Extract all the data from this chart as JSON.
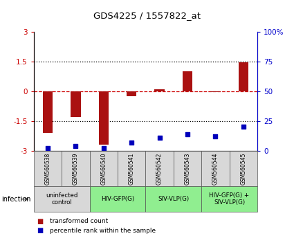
{
  "title": "GDS4225 / 1557822_at",
  "samples": [
    "GSM560538",
    "GSM560539",
    "GSM560540",
    "GSM560541",
    "GSM560542",
    "GSM560543",
    "GSM560544",
    "GSM560545"
  ],
  "transformed_count": [
    -2.1,
    -1.3,
    -2.7,
    -0.25,
    0.1,
    1.0,
    -0.05,
    1.45
  ],
  "percentile_rank": [
    2,
    4,
    2,
    7,
    11,
    14,
    12,
    20
  ],
  "ylim_left": [
    -3,
    3
  ],
  "ylim_right": [
    0,
    100
  ],
  "yticks_left": [
    -3,
    -1.5,
    0,
    1.5,
    3
  ],
  "yticks_right": [
    0,
    25,
    50,
    75,
    100
  ],
  "ytick_labels_left": [
    "-3",
    "-1.5",
    "0",
    "1.5",
    "3"
  ],
  "ytick_labels_right": [
    "0",
    "25",
    "50",
    "75",
    "100%"
  ],
  "hlines_dotted": [
    -1.5,
    1.5
  ],
  "hline_dashed": 0,
  "bar_color": "#aa1111",
  "dot_color": "#0000bb",
  "bar_width": 0.35,
  "dot_size": 25,
  "groups": [
    {
      "label": "uninfected\ncontrol",
      "start": 0,
      "end": 2,
      "color": "#d8d8d8"
    },
    {
      "label": "HIV-GFP(G)",
      "start": 2,
      "end": 4,
      "color": "#90ee90"
    },
    {
      "label": "SIV-VLP(G)",
      "start": 4,
      "end": 6,
      "color": "#90ee90"
    },
    {
      "label": "HIV-GFP(G) +\nSIV-VLP(G)",
      "start": 6,
      "end": 8,
      "color": "#90ee90"
    }
  ],
  "sample_box_color": "#d8d8d8",
  "infection_label": "infection",
  "legend_items": [
    {
      "label": "transformed count",
      "color": "#aa1111"
    },
    {
      "label": "percentile rank within the sample",
      "color": "#0000bb"
    }
  ],
  "axis_color_left": "#cc0000",
  "axis_color_right": "#0000cc",
  "bg_color": "#ffffff",
  "fig_width": 4.25,
  "fig_height": 3.54,
  "dpi": 100
}
